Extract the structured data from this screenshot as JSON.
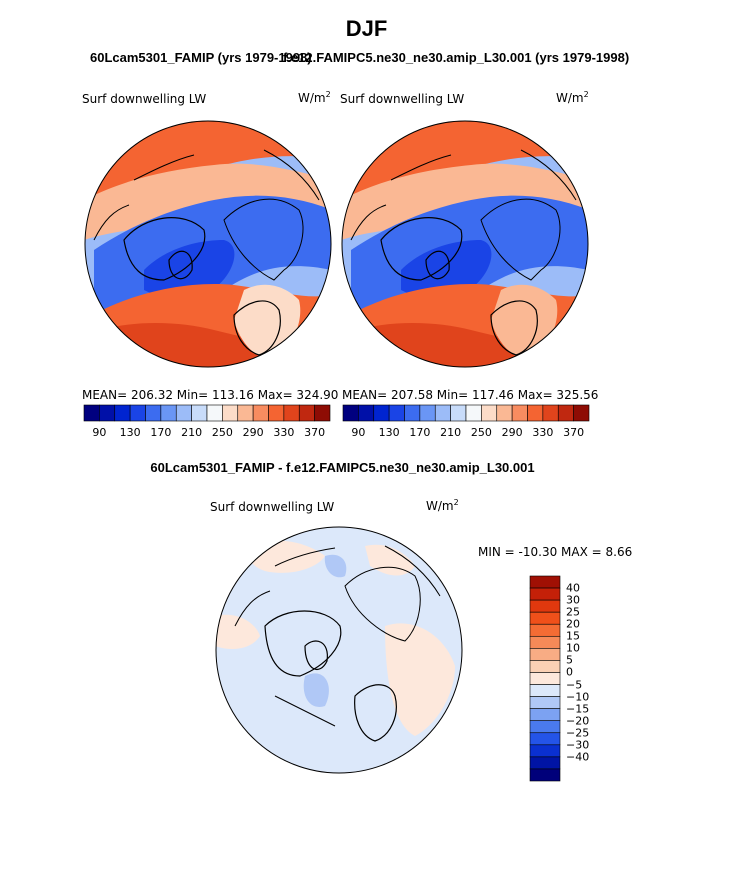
{
  "title": "DJF",
  "panels": [
    {
      "case_title": "60Lcam5301_FAMIP (yrs 1979-1998)",
      "field": "Surf downwelling LW",
      "units": "W/m",
      "units_exp": "2",
      "stats": "MEAN= 206.32  Min= 113.16  Max= 324.90",
      "mean": 206.32,
      "min": 113.16,
      "max": 324.9
    },
    {
      "case_title": "f.e12.FAMIPC5.ne30_ne30.amip_L30.001 (yrs 1979-1998)",
      "field": "Surf downwelling LW",
      "units": "W/m",
      "units_exp": "2",
      "stats": "MEAN= 207.58  Min= 117.46  Max= 325.56",
      "mean": 207.58,
      "min": 117.46,
      "max": 325.56
    }
  ],
  "colorbar": {
    "tick_labels": [
      "90",
      "130",
      "170",
      "210",
      "250",
      "290",
      "330",
      "370"
    ],
    "colors": [
      "#00007f",
      "#0010a8",
      "#0024d0",
      "#1a44e6",
      "#3c6cf0",
      "#6a96f5",
      "#9cbcf8",
      "#c8dcfa",
      "#f5f8fa",
      "#fcdcc8",
      "#fab894",
      "#f88c60",
      "#f46432",
      "#e0441c",
      "#c02810",
      "#8e0c04"
    ]
  },
  "diff_panel": {
    "title": "60Lcam5301_FAMIP - f.e12.FAMIPC5.ne30_ne30.amip_L30.001",
    "field": "Surf downwelling LW",
    "units": "W/m",
    "units_exp": "2",
    "minmax": "MIN = -10.30 MAX =   8.66",
    "min": -10.3,
    "max": 8.66,
    "colorbar_labels": [
      "40",
      "30",
      "25",
      "20",
      "15",
      "10",
      "5",
      "0",
      "−5",
      "−10",
      "−15",
      "−20",
      "−25",
      "−30",
      "−40"
    ],
    "colorbar_colors": [
      "#a01004",
      "#c42008",
      "#e0380e",
      "#f0501a",
      "#f46c34",
      "#f68a58",
      "#f8ac84",
      "#fad0b4",
      "#fde8dc",
      "#dce8fa",
      "#b0c8f6",
      "#7ca2f2",
      "#4a7aee",
      "#2454e8",
      "#0a30d0",
      "#0014a4",
      "#00007a"
    ]
  }
}
